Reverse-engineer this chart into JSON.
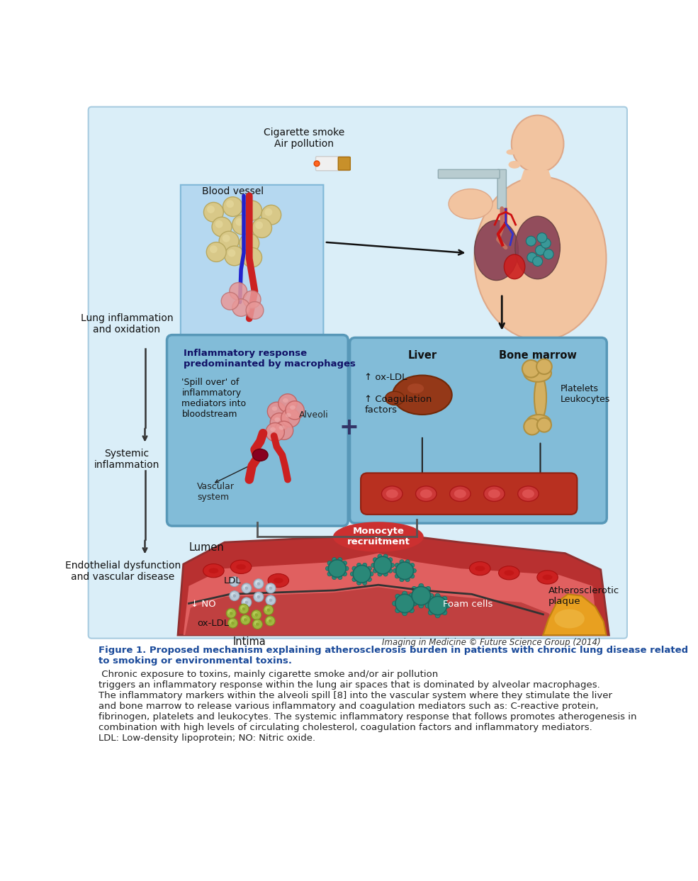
{
  "fig_width": 9.85,
  "fig_height": 12.43,
  "dpi": 100,
  "bg_color": "#ccdde8",
  "main_bg": "#daeef8",
  "box1_bg": "#7dc0dc",
  "box2_bg": "#7dc0dc",
  "vessel_dark": "#b83030",
  "vessel_mid": "#d04848",
  "vessel_light": "#e06868",
  "plaque_color": "#e8a020",
  "teal_cell": "#2a8878",
  "teal_dark": "#1a6860",
  "rbc_color": "#cc2222",
  "liver_color": "#963818",
  "bone_color": "#d4b060",
  "ldl_color": "#b8c8d8",
  "oxldl_color": "#a0b840",
  "caption_blue": "#1a4a9a",
  "caption_black": "#222222",
  "copyright_text": "Imaging in Medicine © Future Science Group (2014)",
  "title_bold": "Figure 1. Proposed mechanism explaining atherosclerosis burden in patients with chronic lung disease related\nto smoking or environmental toxins.",
  "title_normal": " Chronic exposure to toxins, mainly cigarette smoke and/or air pollution\ntriggers an inflammatory response within the lung air spaces that is dominated by alveolar macrophages.\nThe inflammatory markers within the alveoli spill [8] into the vascular system where they stimulate the liver\nand bone marrow to release various inflammatory and coagulation mediators such as: C-reactive protein,\nfibrinogen, platelets and leukocytes. The systemic inflammatory response that follows promotes atherogenesis in\ncombination with high levels of circulating cholesterol, coagulation factors and inflammatory mediators.\nLDL: Low-density lipoprotein; NO: Nitric oxide."
}
